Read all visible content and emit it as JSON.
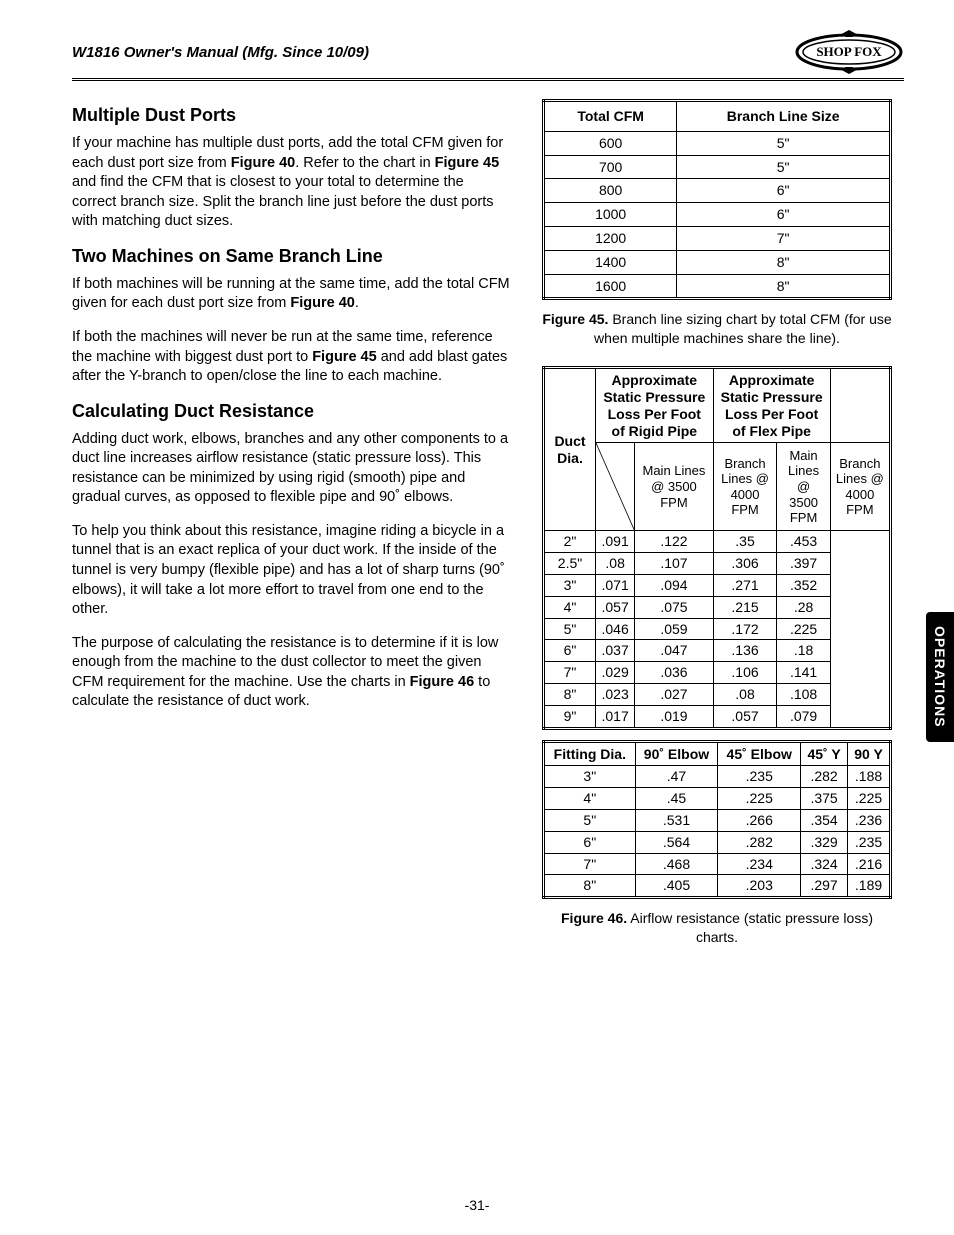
{
  "header": {
    "manual_title": "W1816 Owner's Manual (Mfg. Since 10/09)",
    "brand": "SHOP FOX"
  },
  "side_tab": "OPERATIONS",
  "page_number": "-31-",
  "sections": {
    "s1": {
      "title": "Multiple Dust Ports",
      "p1a": "If your machine has multiple dust ports, add the total CFM given for each dust port size from ",
      "p1b": "Figure 40",
      "p1c": ". Refer to the chart in ",
      "p1d": "Figure 45",
      "p1e": " and find the CFM that is closest to your total to determine the correct branch size. Split the branch line just before the dust ports with matching duct sizes."
    },
    "s2": {
      "title": "Two Machines on Same Branch Line",
      "p1a": "If both machines will be running at the same time, add the total CFM given for each dust port size from ",
      "p1b": "Figure 40",
      "p1c": ".",
      "p2a": "If both the machines will never be run at the same time, reference the machine with biggest dust port to ",
      "p2b": "Figure 45",
      "p2c": " and add blast gates after the Y-branch to open/close the line to each machine."
    },
    "s3": {
      "title": "Calculating Duct Resistance",
      "p1": "Adding duct work, elbows, branches and any other components to a duct line increases airflow resistance (static pressure loss). This resistance can be minimized by using rigid (smooth) pipe and gradual curves, as opposed to flexible pipe and 90˚ elbows.",
      "p2": "To help you think about this resistance, imagine riding a bicycle in a tunnel that is an exact replica of your duct work. If the inside of the tunnel is very bumpy (flexible pipe) and has a lot of sharp turns (90˚ elbows), it will take a lot more effort to travel from one end to the other.",
      "p3a": "The purpose of calculating the resistance is to determine if it is low enough from the machine to the dust collector to meet the given CFM requirement for the machine. Use the charts in ",
      "p3b": "Figure 46",
      "p3c": " to calculate the resistance of duct work."
    }
  },
  "table45": {
    "headers": [
      "Total CFM",
      "Branch Line Size"
    ],
    "rows": [
      [
        "600",
        "5\""
      ],
      [
        "700",
        "5\""
      ],
      [
        "800",
        "6\""
      ],
      [
        "1000",
        "6\""
      ],
      [
        "1200",
        "7\""
      ],
      [
        "1400",
        "8\""
      ],
      [
        "1600",
        "8\""
      ]
    ],
    "caption_b": "Figure 45.",
    "caption": " Branch line sizing chart by total CFM (for use when multiple machines share the line)."
  },
  "table46a": {
    "h1": "Duct Dia.",
    "h2": "Approximate Static Pressure Loss Per Foot of Rigid Pipe",
    "h3": "Approximate Static Pressure Loss Per Foot of Flex Pipe",
    "sub": [
      "Main Lines @ 3500 FPM",
      "Branch Lines @ 4000 FPM",
      "Main Lines @ 3500 FPM",
      "Branch Lines @ 4000 FPM"
    ],
    "rows": [
      [
        "2\"",
        ".091",
        ".122",
        ".35",
        ".453"
      ],
      [
        "2.5\"",
        ".08",
        ".107",
        ".306",
        ".397"
      ],
      [
        "3\"",
        ".071",
        ".094",
        ".271",
        ".352"
      ],
      [
        "4\"",
        ".057",
        ".075",
        ".215",
        ".28"
      ],
      [
        "5\"",
        ".046",
        ".059",
        ".172",
        ".225"
      ],
      [
        "6\"",
        ".037",
        ".047",
        ".136",
        ".18"
      ],
      [
        "7\"",
        ".029",
        ".036",
        ".106",
        ".141"
      ],
      [
        "8\"",
        ".023",
        ".027",
        ".08",
        ".108"
      ],
      [
        "9\"",
        ".017",
        ".019",
        ".057",
        ".079"
      ]
    ]
  },
  "table46b": {
    "headers": [
      "Fitting Dia.",
      "90˚ Elbow",
      "45˚ Elbow",
      "45˚ Y",
      "90 Y"
    ],
    "rows": [
      [
        "3\"",
        ".47",
        ".235",
        ".282",
        ".188"
      ],
      [
        "4\"",
        ".45",
        ".225",
        ".375",
        ".225"
      ],
      [
        "5\"",
        ".531",
        ".266",
        ".354",
        ".236"
      ],
      [
        "6\"",
        ".564",
        ".282",
        ".329",
        ".235"
      ],
      [
        "7\"",
        ".468",
        ".234",
        ".324",
        ".216"
      ],
      [
        "8\"",
        ".405",
        ".203",
        ".297",
        ".189"
      ]
    ],
    "caption_b": "Figure 46.",
    "caption": " Airflow resistance (static pressure loss) charts."
  }
}
